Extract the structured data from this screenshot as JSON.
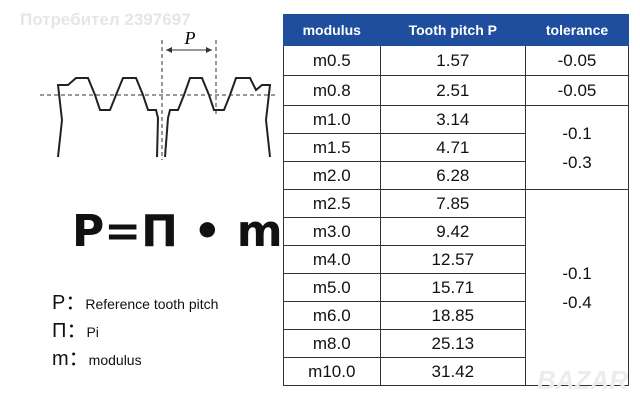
{
  "watermark": "Потребител 2397697",
  "diagram": {
    "label": "P"
  },
  "formula": "P=Π • m",
  "legend": [
    {
      "symbol": "P：",
      "text": "Reference tooth pitch"
    },
    {
      "symbol": "Π：",
      "text": "Pi"
    },
    {
      "symbol": "m：",
      "text": "modulus"
    }
  ],
  "table": {
    "header": [
      "modulus",
      "Tooth pitch P",
      "tolerance"
    ],
    "rows": [
      [
        "m0.5",
        "1.57"
      ],
      [
        "m0.8",
        "2.51"
      ],
      [
        "m1.0",
        "3.14"
      ],
      [
        "m1.5",
        "4.71"
      ],
      [
        "m2.0",
        "6.28"
      ],
      [
        "m2.5",
        "7.85"
      ],
      [
        "m3.0",
        "9.42"
      ],
      [
        "m4.0",
        "12.57"
      ],
      [
        "m5.0",
        "15.71"
      ],
      [
        "m6.0",
        "18.85"
      ],
      [
        "m8.0",
        "25.13"
      ],
      [
        "m10.0",
        "31.42"
      ]
    ],
    "tolerance": [
      [
        "-0.05"
      ],
      [
        "-0.05"
      ],
      [
        "-0.1",
        "-0.3"
      ],
      [
        "-0.1",
        "-0.4"
      ]
    ]
  },
  "corner_watermark": "BAZAR"
}
